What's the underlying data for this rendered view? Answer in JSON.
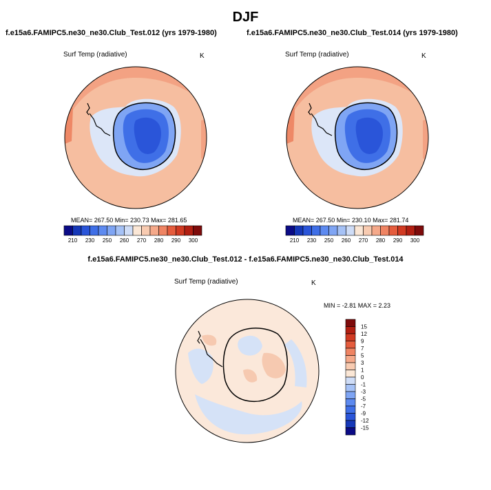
{
  "page": {
    "title": "DJF",
    "case_a_title": "f.e15a6.FAMIPC5.ne30_ne30.Club_Test.012 (yrs 1979-1980)",
    "case_b_title": "f.e15a6.FAMIPC5.ne30_ne30.Club_Test.014 (yrs 1979-1980)",
    "diff_title": "f.e15a6.FAMIPC5.ne30_ne30.Club_Test.012 - f.e15a6.FAMIPC5.ne30_ne30.Club_Test.014"
  },
  "panels": {
    "case_a": {
      "variable": "Surf Temp (radiative)",
      "units": "K",
      "stats": "MEAN= 267.50  Min= 230.73  Max= 281.65"
    },
    "case_b": {
      "variable": "Surf Temp (radiative)",
      "units": "K",
      "stats": "MEAN= 267.50  Min= 230.10  Max= 281.74"
    },
    "diff": {
      "variable": "Surf Temp (radiative)",
      "units": "K",
      "stats": "MIN =  -2.81 MAX =   2.23"
    }
  },
  "colorbars": {
    "abs_labels": [
      "210",
      "230",
      "250",
      "260",
      "270",
      "280",
      "290",
      "300"
    ],
    "abs_colors": [
      "#0b0b86",
      "#1638b8",
      "#2a55d9",
      "#3f6fe7",
      "#5d8af0",
      "#7fa5f4",
      "#a6c2f6",
      "#cfddf7",
      "#fbe7d6",
      "#f8cbb1",
      "#f5a98a",
      "#ef8463",
      "#e55c3d",
      "#d13a22",
      "#b21f12",
      "#7e0b0b"
    ],
    "diff_labels": [
      "15",
      "12",
      "9",
      "7",
      "5",
      "3",
      "1",
      "0",
      "-1",
      "-3",
      "-5",
      "-7",
      "-9",
      "-12",
      "-15"
    ],
    "diff_colors": [
      "#7e0b0b",
      "#b21f12",
      "#d13a22",
      "#e55c3d",
      "#ef8463",
      "#f5a98a",
      "#f8cbb1",
      "#fbe7d6",
      "#cfddf7",
      "#a6c2f6",
      "#7fa5f4",
      "#5d8af0",
      "#3f6fe7",
      "#2a55d9",
      "#1638b8",
      "#0b0b86"
    ]
  },
  "map_colors": {
    "ocean_warm": "#f6bea0",
    "ocean_warmer": "#f3a283",
    "ocean_hot": "#ee8866",
    "ice_light": "#dce6f8",
    "land_cold": "#3f6fe7",
    "land_mid": "#7fa5f4",
    "land_coldest": "#2a55d9",
    "diff_background": "#fbe8da",
    "diff_blue": "#d5e2f7",
    "diff_orange": "#f6c9b0"
  }
}
